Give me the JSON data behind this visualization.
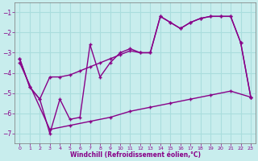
{
  "xlabel": "Windchill (Refroidissement éolien,°C)",
  "xlim": [
    -0.5,
    23.5
  ],
  "ylim": [
    -7.5,
    -0.5
  ],
  "yticks": [
    -7,
    -6,
    -5,
    -4,
    -3,
    -2,
    -1
  ],
  "xticks": [
    0,
    1,
    2,
    3,
    4,
    5,
    6,
    7,
    8,
    9,
    10,
    11,
    12,
    13,
    14,
    15,
    16,
    17,
    18,
    19,
    20,
    21,
    22,
    23
  ],
  "bg_color": "#c8eded",
  "grid_color": "#aadddd",
  "line_color": "#880088",
  "line1_x": [
    0,
    1,
    2,
    3,
    4,
    5,
    6,
    7,
    8,
    9,
    10,
    11,
    12,
    13,
    14,
    15,
    16,
    17,
    18,
    19,
    20,
    21,
    22,
    23
  ],
  "line1_y": [
    -3.3,
    -4.7,
    -5.3,
    -7.0,
    -5.3,
    -6.3,
    -6.2,
    -2.6,
    -4.2,
    -3.5,
    -3.0,
    -2.8,
    -3.0,
    -3.0,
    -1.2,
    -1.5,
    -1.8,
    -1.5,
    -1.3,
    -1.2,
    -1.2,
    -1.2,
    -2.5,
    -5.2
  ],
  "line2_x": [
    0,
    1,
    2,
    3,
    4,
    5,
    6,
    7,
    8,
    9,
    10,
    11,
    12,
    13,
    14,
    15,
    16,
    17,
    18,
    19,
    20,
    21,
    22,
    23
  ],
  "line2_y": [
    -3.3,
    -4.7,
    -5.3,
    -4.2,
    -4.2,
    -4.1,
    -3.9,
    -3.7,
    -3.5,
    -3.3,
    -3.1,
    -2.9,
    -3.0,
    -3.0,
    -1.2,
    -1.5,
    -1.8,
    -1.5,
    -1.3,
    -1.2,
    -1.2,
    -1.2,
    -2.5,
    -5.2
  ],
  "line3_x": [
    0,
    3,
    5,
    7,
    9,
    11,
    13,
    15,
    17,
    19,
    21,
    23
  ],
  "line3_y": [
    -3.5,
    -6.8,
    -6.6,
    -6.4,
    -6.2,
    -5.9,
    -5.7,
    -5.5,
    -5.3,
    -5.1,
    -4.9,
    -5.2
  ]
}
